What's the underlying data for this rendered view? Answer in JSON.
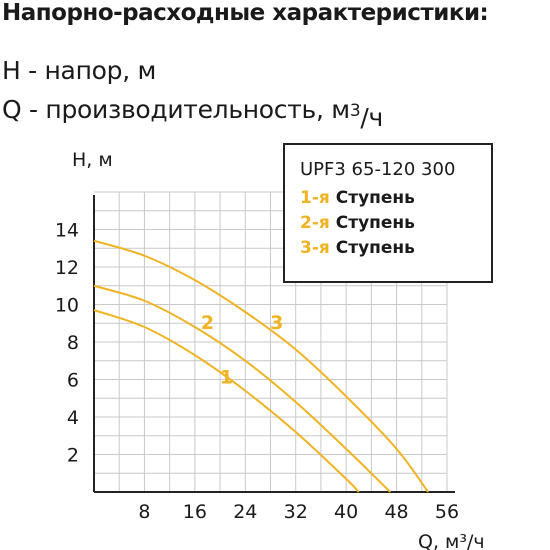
{
  "header": {
    "title": "Напорно-расходные характеристики:",
    "legend_h": "H - напор, м",
    "legend_q_text": "Q - производительность, м",
    "legend_q_sup": "3",
    "legend_q_sub": "/ч"
  },
  "legend_box": {
    "model": "UPF3 65-120 300",
    "items": [
      {
        "num": "1-я",
        "label": "Ступень"
      },
      {
        "num": "2-я",
        "label": "Ступень"
      },
      {
        "num": "3-я",
        "label": "Ступень"
      }
    ]
  },
  "colors": {
    "curve": "#f0b323",
    "grid": "#c9c9c9",
    "axis": "#222222",
    "text": "#1a1a1a"
  },
  "chart_data": {
    "type": "line",
    "xlabel": "Q, м³/ч",
    "ylabel": "H, м",
    "xlim": [
      0,
      56
    ],
    "ylim": [
      0,
      16
    ],
    "x_ticks": [
      8,
      16,
      24,
      32,
      40,
      48,
      56
    ],
    "y_ticks": [
      2,
      4,
      6,
      8,
      10,
      12,
      14
    ],
    "grid": true,
    "legend_position": "top-right",
    "series": [
      {
        "name": "1",
        "label_at": [
          21,
          5.8
        ],
        "x": [
          0,
          8,
          16,
          24,
          32,
          40,
          42
        ],
        "y": [
          9.7,
          8.8,
          7.3,
          5.4,
          3.2,
          0.7,
          0
        ]
      },
      {
        "name": "2",
        "label_at": [
          18,
          8.7
        ],
        "x": [
          0,
          8,
          16,
          24,
          32,
          40,
          47
        ],
        "y": [
          11.0,
          10.2,
          8.8,
          7.0,
          4.8,
          2.3,
          0
        ]
      },
      {
        "name": "3",
        "label_at": [
          29,
          8.7
        ],
        "x": [
          0,
          8,
          16,
          24,
          32,
          40,
          48,
          53
        ],
        "y": [
          13.4,
          12.6,
          11.3,
          9.6,
          7.6,
          5.1,
          2.3,
          0
        ]
      }
    ]
  }
}
